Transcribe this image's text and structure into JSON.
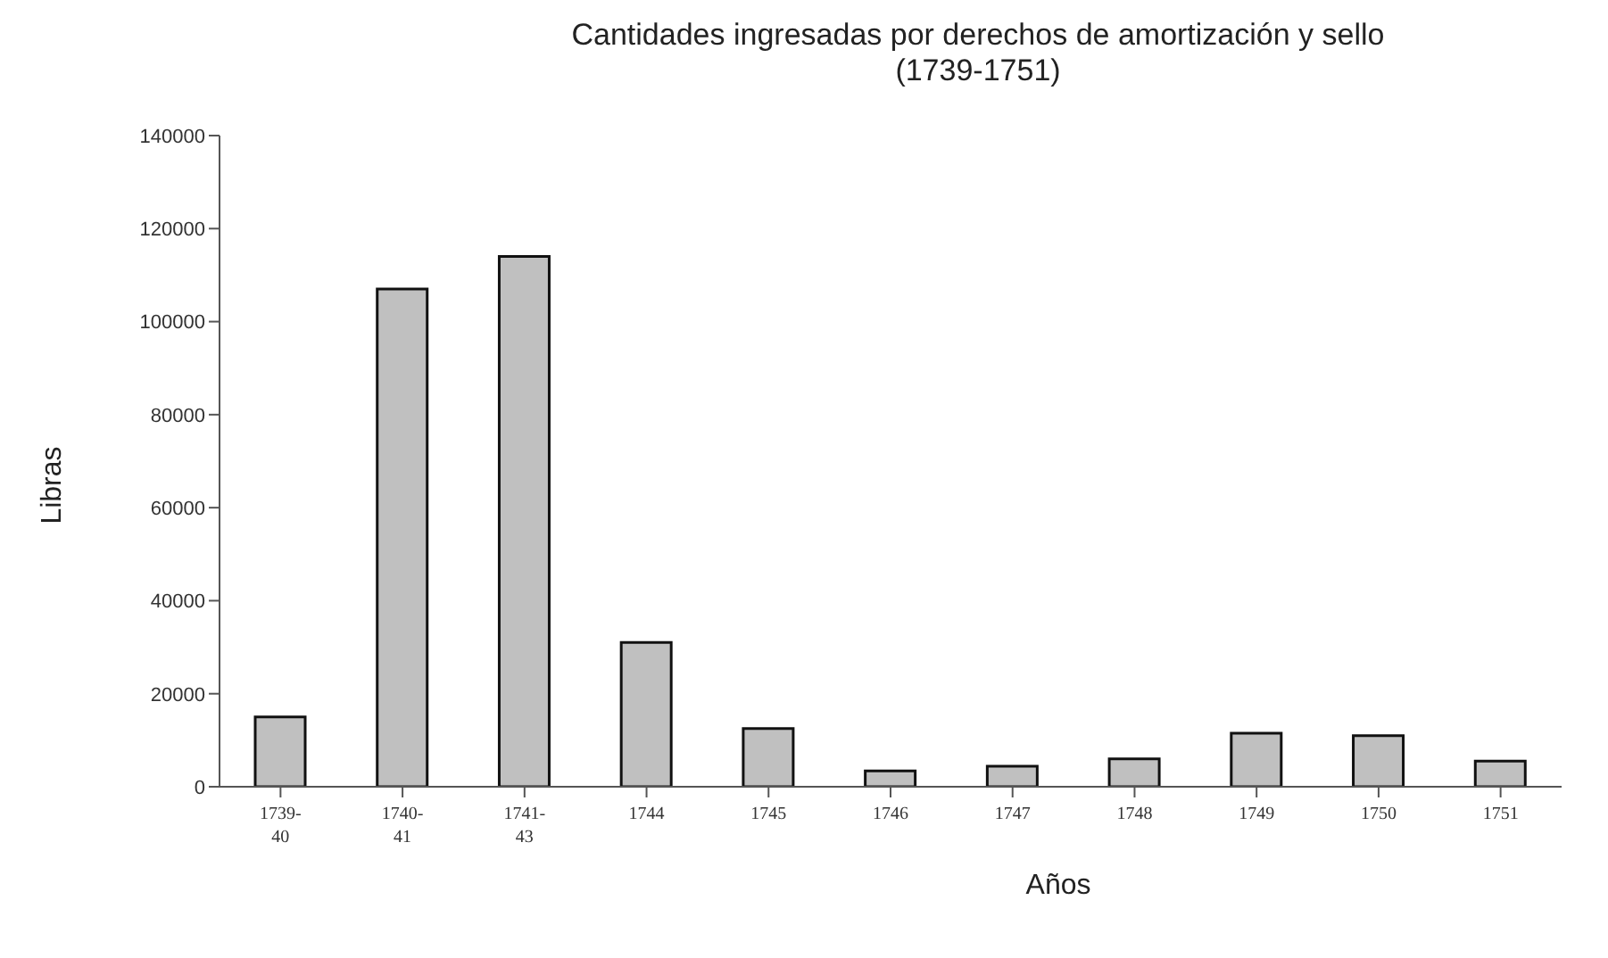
{
  "chart_data": {
    "type": "bar",
    "title": "Cantidades ingresadas por derechos de amortización y sello\n(1739-1751)",
    "xlabel": "Años",
    "ylabel": "Libras",
    "categories": [
      "1739-40",
      "1740-41",
      "1741-43",
      "1744",
      "1745",
      "1746",
      "1747",
      "1748",
      "1749",
      "1750",
      "1751"
    ],
    "values": [
      15000,
      107000,
      114000,
      31000,
      12500,
      3400,
      4400,
      6000,
      11500,
      11000,
      5500
    ],
    "color": "#c0c0c0",
    "ylim": [
      0,
      140000
    ],
    "yticks": [
      0,
      20000,
      40000,
      60000,
      80000,
      100000,
      120000,
      140000
    ],
    "grid": false,
    "legend": false
  }
}
